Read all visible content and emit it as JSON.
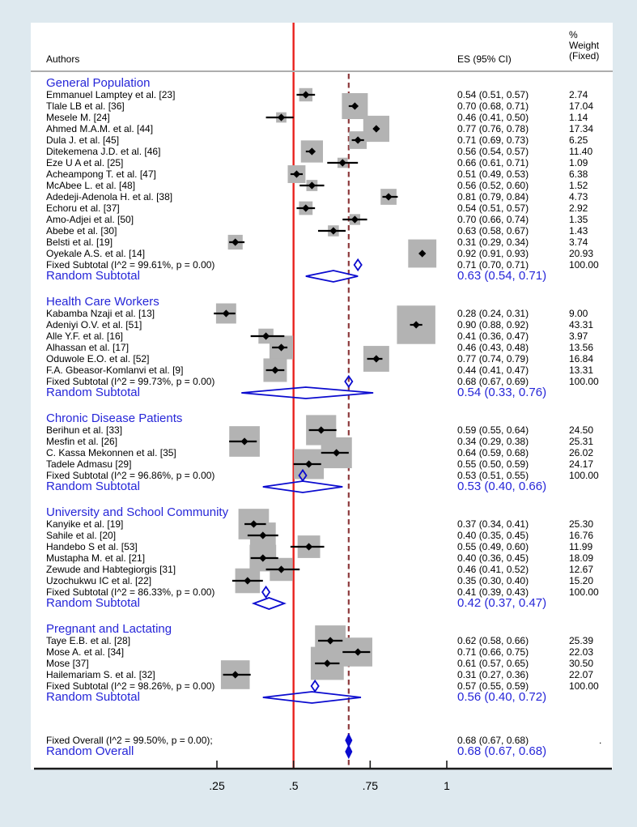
{
  "header": {
    "authors_label": "Authors",
    "es_label": "ES (95% CI)",
    "weight_label_lines": [
      "%",
      "Weight",
      "(Fixed)"
    ]
  },
  "colors": {
    "background": "#dee9ef",
    "panel": "#ffffff",
    "group_text_blue": "#2626d8",
    "diamond_blue": "#0b0bcf",
    "solid_ref_line_red": "#e8211d",
    "dashed_ref_line_maroon": "#8e3b3d",
    "weight_box_gray": "#b3b3b3",
    "marker_black": "#000000",
    "axis_black": "#1a1a1a",
    "header_rule_gray": "#adadad"
  },
  "chart_data": {
    "type": "forest",
    "effect_label": "ES (95% CI)",
    "weight_label": "% Weight (Fixed)",
    "axis": {
      "tick_labels": [
        ".25",
        ".5",
        ".75",
        "1"
      ],
      "tick_values": [
        0.25,
        0.5,
        0.75,
        1
      ],
      "solid_ref_value": 0.5,
      "dashed_ref_value": 0.68,
      "xlim": [
        0.25,
        1
      ]
    },
    "groups": [
      {
        "name": "General Population",
        "studies": [
          {
            "label": "Emmanuel Lamptey et al. [23]",
            "es_ci": "0.54 (0.51, 0.57)",
            "weight": "2.74"
          },
          {
            "label": "Tlale LB et al. [36]",
            "es_ci": "0.70 (0.68, 0.71)",
            "weight": "17.04"
          },
          {
            "label": "Mesele M. [24]",
            "es_ci": "0.46 (0.41, 0.50)",
            "weight": "1.14"
          },
          {
            "label": "Ahmed M.A.M. et al. [44]",
            "es_ci": "0.77 (0.76, 0.78)",
            "weight": "17.34"
          },
          {
            "label": "Dula J. et al. [45]",
            "es_ci": "0.71 (0.69, 0.73)",
            "weight": "6.25"
          },
          {
            "label": "Ditekemena J.D. et al. [46]",
            "es_ci": "0.56 (0.54, 0.57)",
            "weight": "11.40"
          },
          {
            "label": "Eze U A et al. [25]",
            "es_ci": "0.66 (0.61, 0.71)",
            "weight": "1.09"
          },
          {
            "label": "Acheampong T. et al. [47]",
            "es_ci": "0.51 (0.49, 0.53)",
            "weight": "6.38"
          },
          {
            "label": "McAbee L. et al. [48]",
            "es_ci": "0.56 (0.52, 0.60)",
            "weight": "1.52"
          },
          {
            "label": "Adedeji-Adenola H. et al. [38]",
            "es_ci": "0.81 (0.79, 0.84)",
            "weight": "4.73"
          },
          {
            "label": "Echoru et al. [37]",
            "es_ci": "0.54 (0.51, 0.57)",
            "weight": "2.92"
          },
          {
            "label": "Amo-Adjei et al. [50]",
            "es_ci": "0.70 (0.66, 0.74)",
            "weight": "1.35"
          },
          {
            "label": "Abebe et al. [30]",
            "es_ci": "0.63 (0.58, 0.67)",
            "weight": "1.43"
          },
          {
            "label": "Belsti et al. [19]",
            "es_ci": "0.31 (0.29, 0.34)",
            "weight": "3.74"
          },
          {
            "label": "Oyekale A.S. et al. [14]",
            "es_ci": "0.92 (0.91, 0.93)",
            "weight": "20.93"
          }
        ],
        "fixed": {
          "label": "Fixed Subtotal  (I^2 = 99.61%, p = 0.00)",
          "es_ci": "0.71 (0.70, 0.71)",
          "weight": "100.00"
        },
        "random": {
          "label": "Random Subtotal",
          "es_ci": "0.63 (0.54, 0.71)"
        }
      },
      {
        "name": "Health Care Workers",
        "studies": [
          {
            "label": "Kabamba Nzaji et al. [13]",
            "es_ci": "0.28 (0.24, 0.31)",
            "weight": "9.00"
          },
          {
            "label": "Adeniyi O.V. et al. [51]",
            "es_ci": "0.90 (0.88, 0.92)",
            "weight": "43.31"
          },
          {
            "label": "Alle Y.F. et al. [16]",
            "es_ci": "0.41 (0.36, 0.47)",
            "weight": "3.97"
          },
          {
            "label": "Alhassan et al. [17]",
            "es_ci": "0.46 (0.43, 0.48)",
            "weight": "13.56"
          },
          {
            "label": "Oduwole E.O. et al. [52]",
            "es_ci": "0.77 (0.74, 0.79)",
            "weight": "16.84"
          },
          {
            "label": "F.A. Gbeasor-Komlanvi et al. [9]",
            "es_ci": "0.44 (0.41, 0.47)",
            "weight": "13.31"
          }
        ],
        "fixed": {
          "label": "Fixed Subtotal  (I^2 = 99.73%, p = 0.00)",
          "es_ci": "0.68 (0.67, 0.69)",
          "weight": "100.00"
        },
        "random": {
          "label": "Random Subtotal",
          "es_ci": "0.54 (0.33, 0.76)"
        }
      },
      {
        "name": "Chronic Disease Patients",
        "studies": [
          {
            "label": "Berihun et al. [33]",
            "es_ci": "0.59 (0.55, 0.64)",
            "weight": "24.50"
          },
          {
            "label": "Mesfin et al. [26]",
            "es_ci": "0.34 (0.29, 0.38)",
            "weight": "25.31"
          },
          {
            "label": "C. Kassa Mekonnen et al. [35]",
            "es_ci": "0.64 (0.59, 0.68)",
            "weight": "26.02"
          },
          {
            "label": "Tadele Admasu [29]",
            "es_ci": "0.55 (0.50, 0.59)",
            "weight": "24.17"
          }
        ],
        "fixed": {
          "label": "Fixed Subtotal  (I^2 = 96.86%, p = 0.00)",
          "es_ci": "0.53 (0.51, 0.55)",
          "weight": "100.00"
        },
        "random": {
          "label": "Random Subtotal",
          "es_ci": "0.53 (0.40, 0.66)"
        }
      },
      {
        "name": "University and School Community",
        "studies": [
          {
            "label": "Kanyike et al. [19]",
            "es_ci": "0.37 (0.34, 0.41)",
            "weight": "25.30"
          },
          {
            "label": "Sahile et al. [20]",
            "es_ci": "0.40 (0.35, 0.45)",
            "weight": "16.76"
          },
          {
            "label": "Handebo S et al. [53]",
            "es_ci": "0.55 (0.49, 0.60)",
            "weight": "11.99"
          },
          {
            "label": "Mustapha M. et al. [21]",
            "es_ci": "0.40 (0.36, 0.45)",
            "weight": "18.09"
          },
          {
            "label": "Zewude and Habtegiorgis [31]",
            "es_ci": "0.46 (0.41, 0.52)",
            "weight": "12.67"
          },
          {
            "label": "Uzochukwu IC et al. [22]",
            "es_ci": "0.35 (0.30, 0.40)",
            "weight": "15.20"
          }
        ],
        "fixed": {
          "label": "Fixed Subtotal  (I^2 = 86.33%, p = 0.00)",
          "es_ci": "0.41 (0.39, 0.43)",
          "weight": "100.00"
        },
        "random": {
          "label": "Random Subtotal",
          "es_ci": "0.42 (0.37, 0.47)"
        }
      },
      {
        "name": "Pregnant and Lactating",
        "studies": [
          {
            "label": "Taye E.B. et al. [28]",
            "es_ci": "0.62 (0.58, 0.66)",
            "weight": "25.39"
          },
          {
            "label": "Mose A. et al. [34]",
            "es_ci": "0.71 (0.66, 0.75)",
            "weight": "22.03"
          },
          {
            "label": "Mose [37]",
            "es_ci": "0.61 (0.57, 0.65)",
            "weight": "30.50"
          },
          {
            "label": "Hailemariam S. et al. [32]",
            "es_ci": "0.31 (0.27, 0.36)",
            "weight": "22.07"
          }
        ],
        "fixed": {
          "label": "Fixed Subtotal  (I^2 = 98.26%, p = 0.00)",
          "es_ci": "0.57 (0.55, 0.59)",
          "weight": "100.00"
        },
        "random": {
          "label": "Random Subtotal",
          "es_ci": "0.56 (0.40, 0.72)"
        }
      }
    ],
    "overall": {
      "fixed": {
        "label": "Fixed Overall  (I^2 = 99.50%, p = 0.00);",
        "es_ci": "0.68 (0.67, 0.68)",
        "weight": "."
      },
      "random": {
        "label": "Random Overall",
        "es_ci": "0.68 (0.67, 0.68)"
      }
    }
  }
}
